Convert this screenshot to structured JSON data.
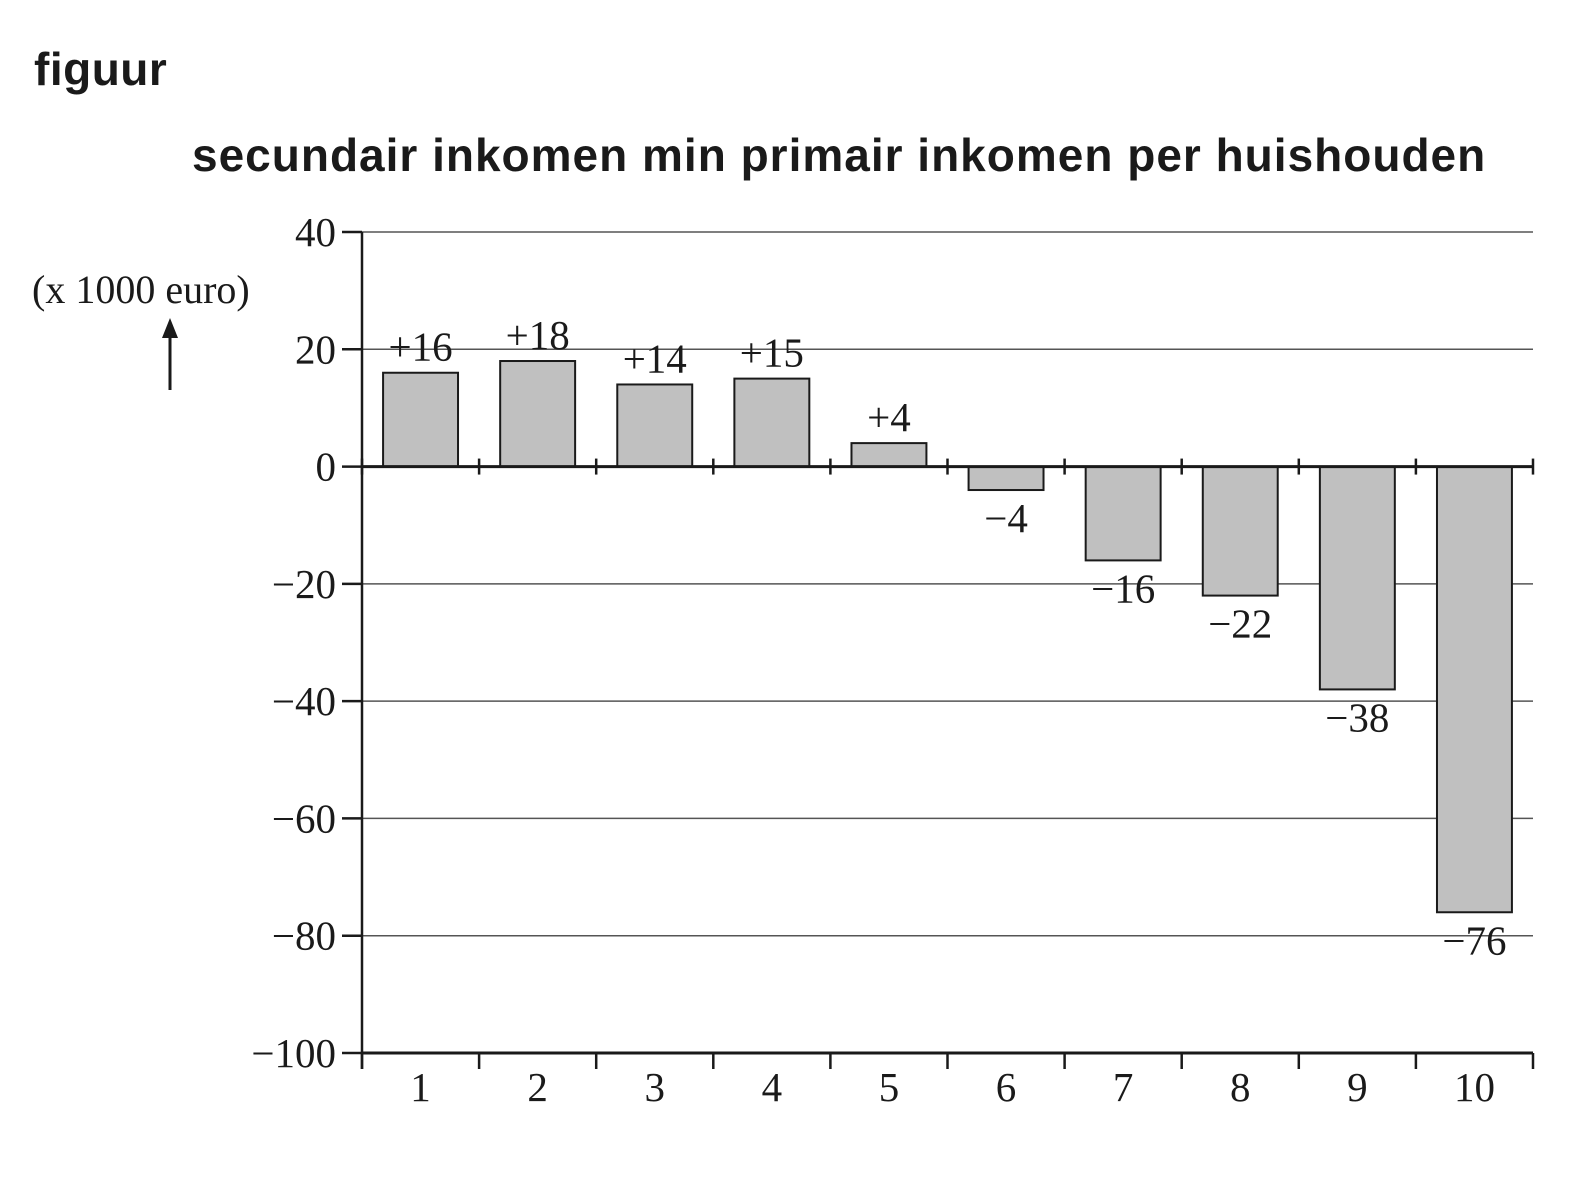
{
  "figure_label": "figuur",
  "chart_data": {
    "type": "bar",
    "title": "secundair inkomen min primair inkomen per huishouden",
    "xlabel": "",
    "ylabel": "(x 1000 euro)",
    "categories": [
      "1",
      "2",
      "3",
      "4",
      "5",
      "6",
      "7",
      "8",
      "9",
      "10"
    ],
    "values": [
      16,
      18,
      14,
      15,
      4,
      -4,
      -16,
      -22,
      -38,
      -76
    ],
    "data_labels": [
      "+16",
      "+18",
      "+14",
      "+15",
      "+4",
      "−4",
      "−16",
      "−22",
      "−38",
      "−76"
    ],
    "ylim": [
      -100,
      40
    ],
    "yticks": [
      40,
      20,
      0,
      -20,
      -40,
      -60,
      -80,
      -100
    ],
    "ytick_labels": [
      "40",
      "20",
      "0",
      "−20",
      "−40",
      "−60",
      "−80",
      "−100"
    ],
    "grid": true,
    "legend": "none",
    "colors": {
      "bar_fill": "#c0c0c0",
      "bar_stroke": "#1a1a1a",
      "grid": "#555555",
      "axis": "#1a1a1a"
    }
  }
}
